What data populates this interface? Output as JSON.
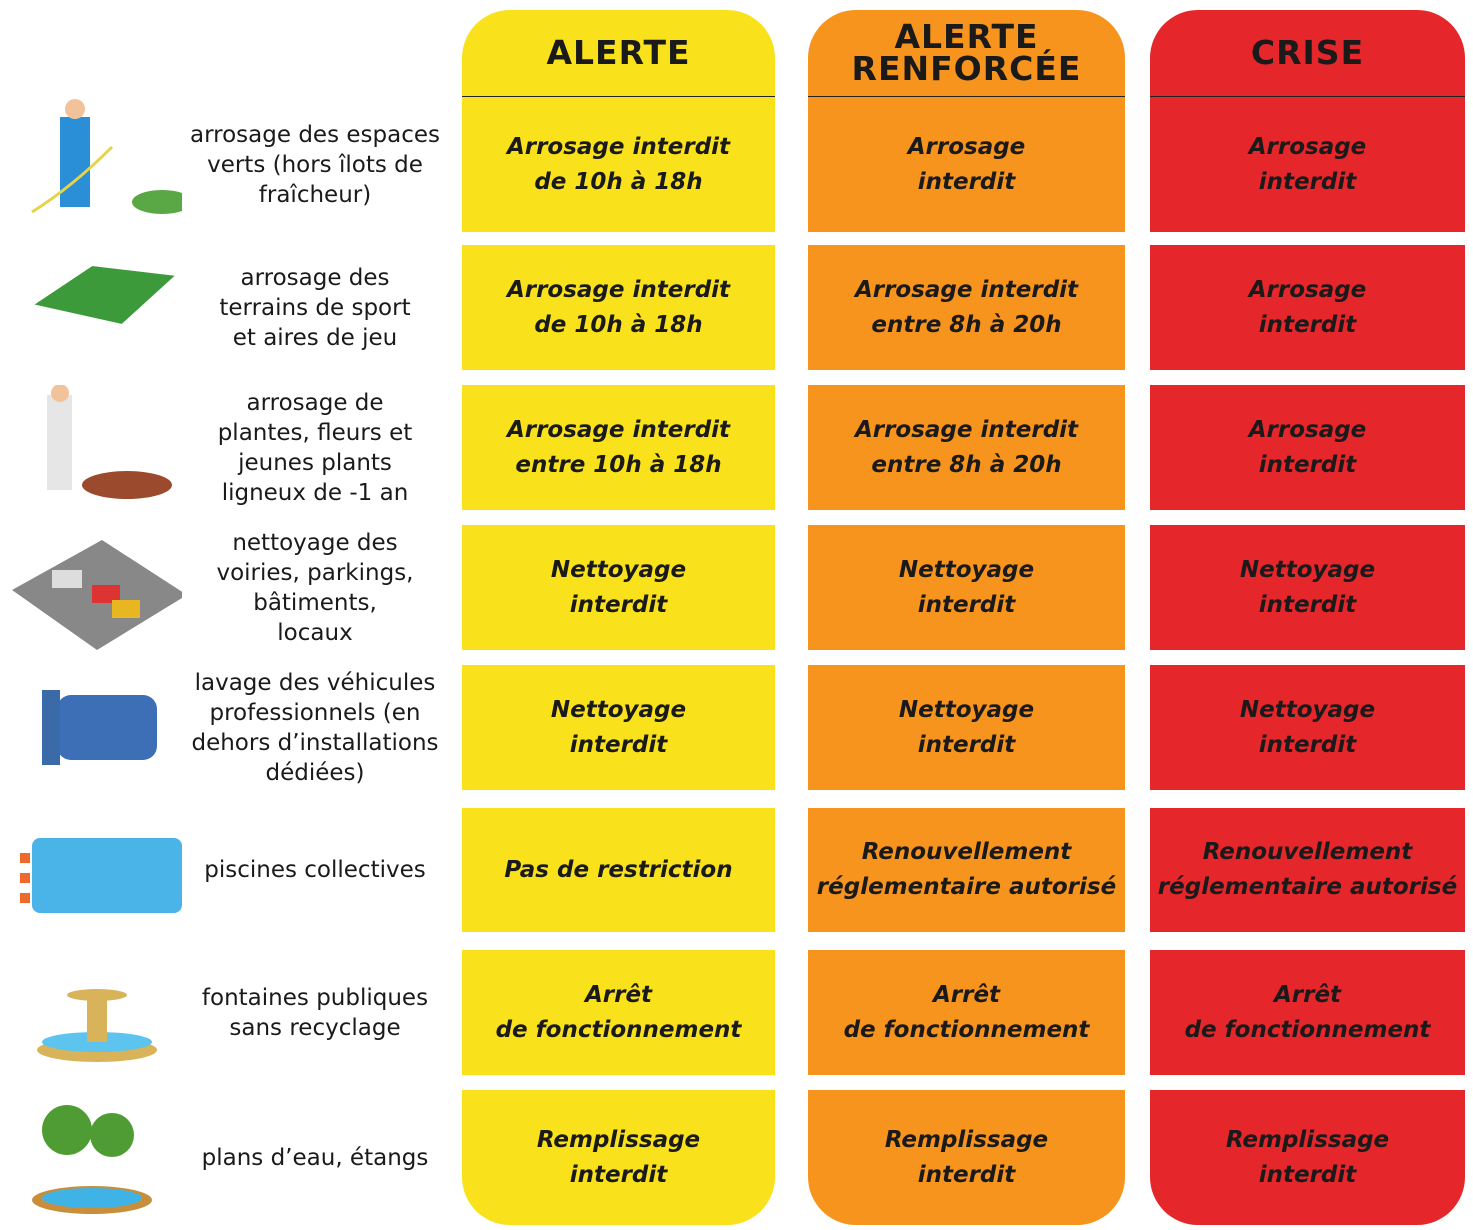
{
  "columns": [
    {
      "title": [
        "ALERTE"
      ],
      "color": "#f9e21b"
    },
    {
      "title": [
        "ALERTE",
        "RENFORCÉE"
      ],
      "color": "#f7941d"
    },
    {
      "title": [
        "CRISE"
      ],
      "color": "#e5262b"
    }
  ],
  "rows": [
    {
      "label": [
        "arrosage des espaces",
        "verts (hors îlots de",
        "fraîcheur)"
      ],
      "cells": [
        [
          "Arrosage interdit",
          "de 10h à 18h"
        ],
        [
          "Arrosage",
          "interdit"
        ],
        [
          "Arrosage",
          "interdit"
        ]
      ]
    },
    {
      "label": [
        "arrosage des",
        "terrains de sport",
        "et aires de jeu"
      ],
      "cells": [
        [
          "Arrosage interdit",
          "de 10h à 18h"
        ],
        [
          "Arrosage interdit",
          "entre 8h à 20h"
        ],
        [
          "Arrosage",
          "interdit"
        ]
      ]
    },
    {
      "label": [
        "arrosage de",
        "plantes, fleurs et",
        "jeunes plants",
        "ligneux de -1 an"
      ],
      "cells": [
        [
          "Arrosage interdit",
          "entre 10h à 18h"
        ],
        [
          "Arrosage interdit",
          "entre 8h à 20h"
        ],
        [
          "Arrosage",
          "interdit"
        ]
      ]
    },
    {
      "label": [
        "nettoyage des",
        "voiries, parkings,",
        "bâtiments,",
        "locaux"
      ],
      "cells": [
        [
          "Nettoyage",
          "interdit"
        ],
        [
          "Nettoyage",
          "interdit"
        ],
        [
          "Nettoyage",
          "interdit"
        ]
      ]
    },
    {
      "label": [
        "lavage des véhicules",
        "professionnels (en",
        "dehors d’installations",
        "dédiées)"
      ],
      "cells": [
        [
          "Nettoyage",
          "interdit"
        ],
        [
          "Nettoyage",
          "interdit"
        ],
        [
          "Nettoyage",
          "interdit"
        ]
      ]
    },
    {
      "label": [
        "piscines collectives"
      ],
      "cells": [
        [
          "Pas de restriction"
        ],
        [
          "Renouvellement",
          "réglementaire autorisé"
        ],
        [
          "Renouvellement",
          "réglementaire autorisé"
        ]
      ]
    },
    {
      "label": [
        "fontaines publiques",
        "sans recyclage"
      ],
      "cells": [
        [
          "Arrêt",
          "de fonctionnement"
        ],
        [
          "Arrêt",
          "de fonctionnement"
        ],
        [
          "Arrêt",
          "de fonctionnement"
        ]
      ]
    },
    {
      "label": [
        "plans d’eau, étangs"
      ],
      "cells": [
        [
          "Remplissage",
          "interdit"
        ],
        [
          "Remplissage",
          "interdit"
        ],
        [
          "Remplissage",
          "interdit"
        ]
      ]
    }
  ]
}
